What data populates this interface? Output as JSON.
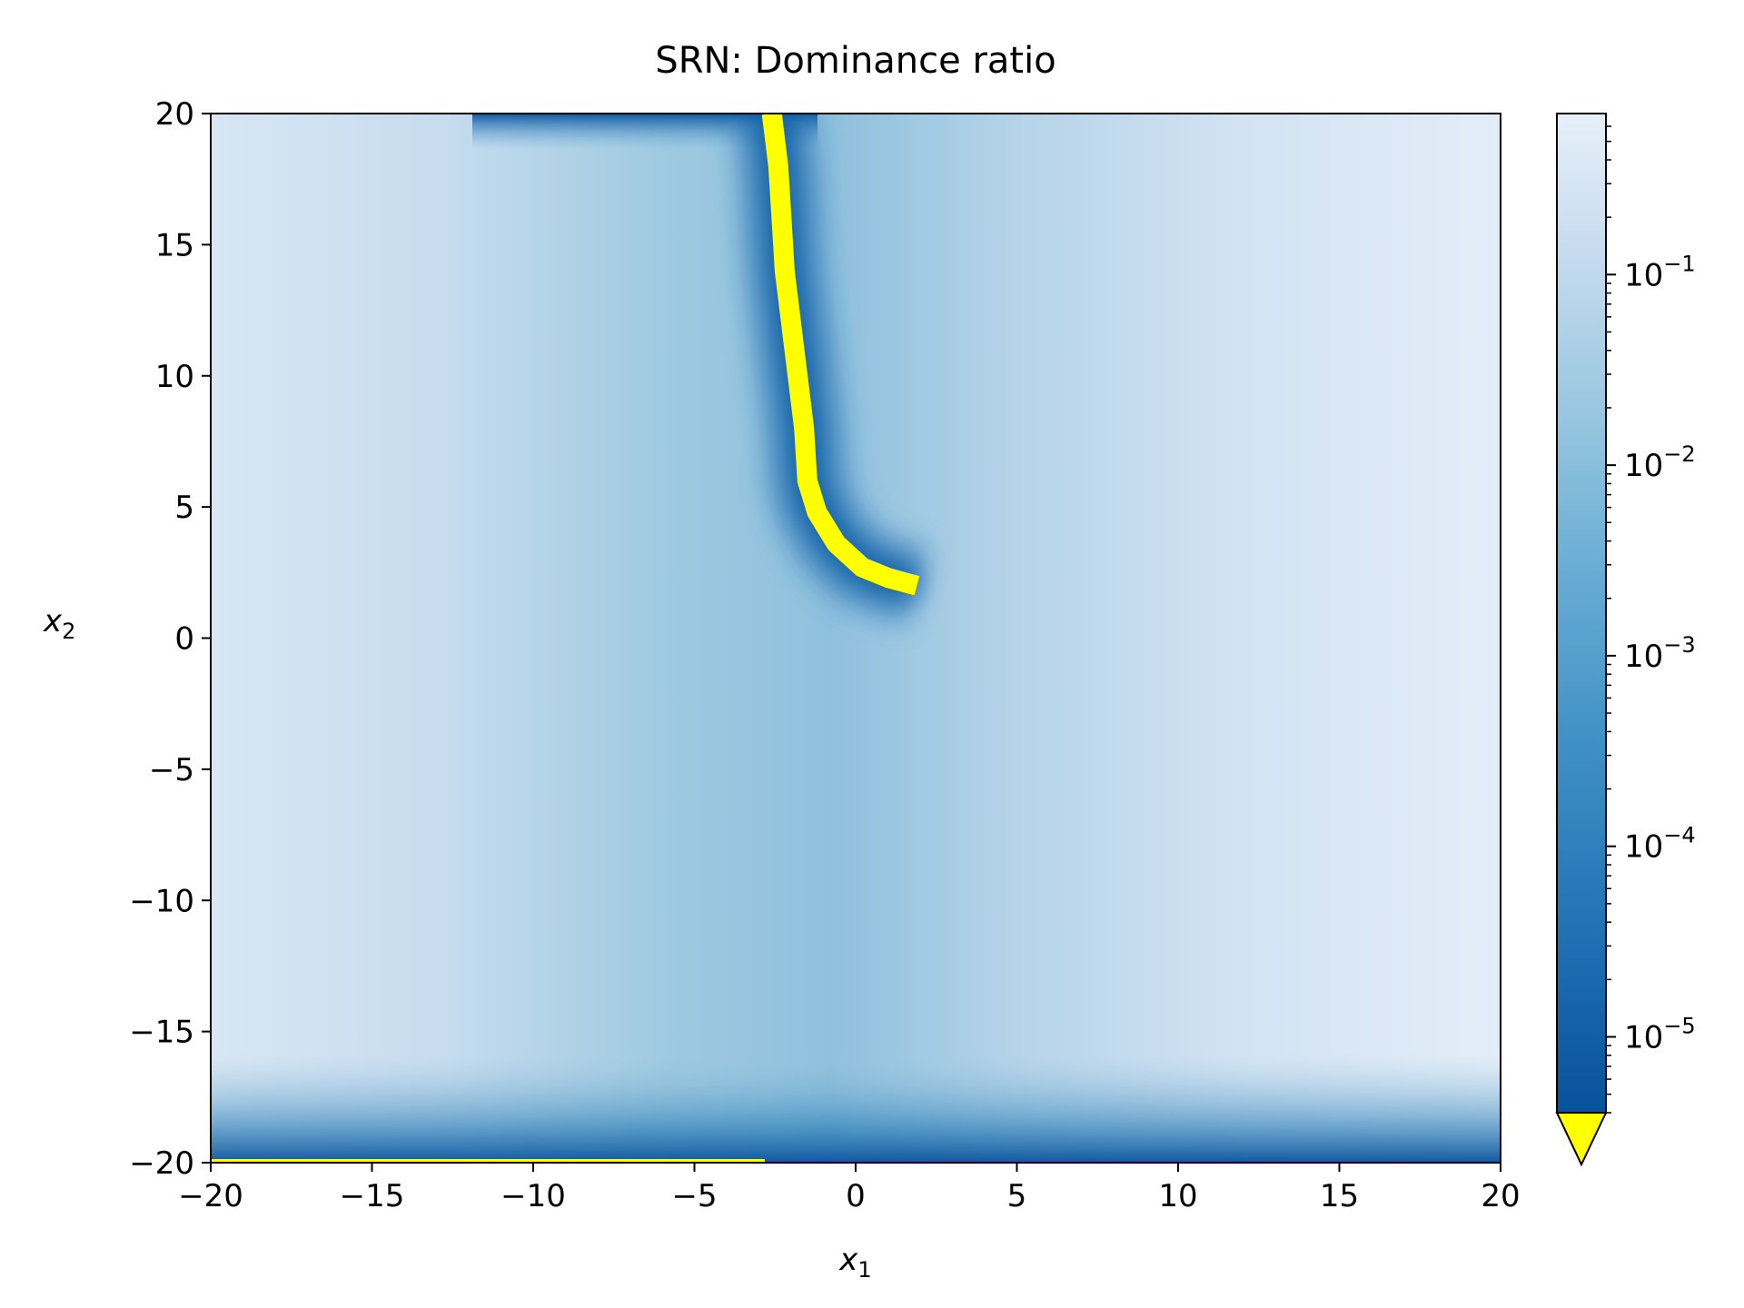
{
  "chart_data": {
    "type": "heatmap",
    "title": "SRN: Dominance ratio",
    "xlabel": "x",
    "xlabel_sub": "1",
    "ylabel": "x",
    "ylabel_sub": "2",
    "xlim": [
      -20,
      20
    ],
    "ylim": [
      -20,
      20
    ],
    "x_ticks": [
      -20,
      -15,
      -10,
      -5,
      0,
      5,
      10,
      15,
      20
    ],
    "y_ticks": [
      -20,
      -15,
      -10,
      -5,
      0,
      5,
      10,
      15,
      20
    ],
    "x_tick_labels": [
      "−20",
      "−15",
      "−10",
      "−5",
      "0",
      "5",
      "10",
      "15",
      "20"
    ],
    "y_tick_labels": [
      "−20",
      "−15",
      "−10",
      "−5",
      "0",
      "5",
      "10",
      "15",
      "20"
    ],
    "colormap": "Blues_r",
    "under_color": "#ffff00",
    "colorbar": {
      "scale": "log",
      "range": [
        4e-06,
        0.7
      ],
      "extend": "min",
      "major_ticks": [
        {
          "value": 0.1,
          "base": "10",
          "exp": "−1"
        },
        {
          "value": 0.01,
          "base": "10",
          "exp": "−2"
        },
        {
          "value": 0.001,
          "base": "10",
          "exp": "−3"
        },
        {
          "value": 0.0001,
          "base": "10",
          "exp": "−4"
        },
        {
          "value": 1e-05,
          "base": "10",
          "exp": "−5"
        }
      ]
    },
    "under_threshold_curve": [
      [
        -2.6,
        20
      ],
      [
        -2.4,
        18
      ],
      [
        -2.3,
        16
      ],
      [
        -2.2,
        14
      ],
      [
        -2.0,
        12
      ],
      [
        -1.8,
        10
      ],
      [
        -1.6,
        8
      ],
      [
        -1.5,
        6
      ],
      [
        -1.2,
        4.8
      ],
      [
        -0.6,
        3.6
      ],
      [
        0.2,
        2.7
      ],
      [
        1.0,
        2.3
      ],
      [
        1.9,
        2.0
      ]
    ],
    "grid": false
  }
}
